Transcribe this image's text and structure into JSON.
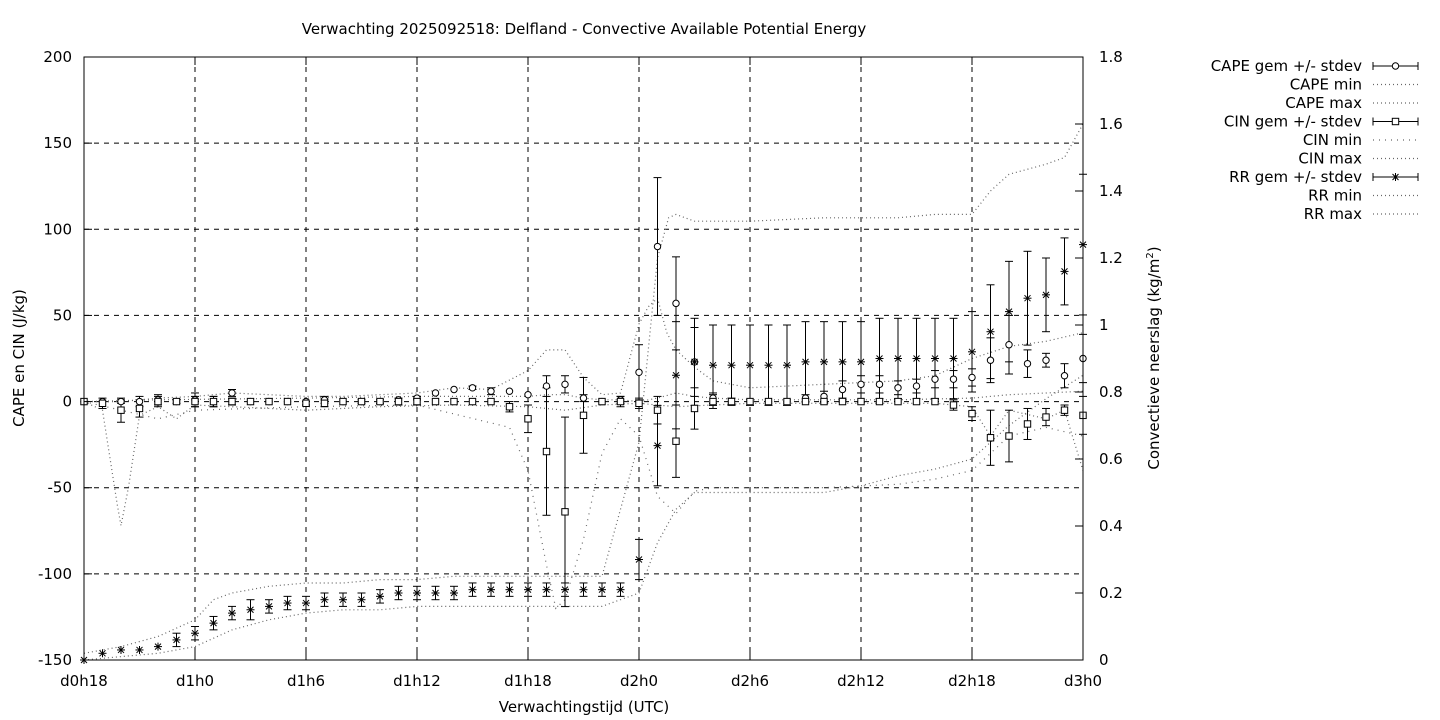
{
  "chart_data": {
    "type": "line",
    "title": "Verwachting 2025092518: Delfland - Convective Available Potential Energy",
    "xlabel": "Verwachtingstijd (UTC)",
    "ylabel": "CAPE en CIN (J/kg)",
    "y2label_main": "Convectieve neerslag (kg/m",
    "y2label_sup": "2",
    "y2label_end": ")",
    "xlim": [
      0,
      54
    ],
    "x_ticks": [
      {
        "x": 0,
        "label": "d0h18"
      },
      {
        "x": 6,
        "label": "d1h0"
      },
      {
        "x": 12,
        "label": "d1h6"
      },
      {
        "x": 18,
        "label": "d1h12"
      },
      {
        "x": 24,
        "label": "d1h18"
      },
      {
        "x": 30,
        "label": "d2h0"
      },
      {
        "x": 36,
        "label": "d2h6"
      },
      {
        "x": 42,
        "label": "d2h12"
      },
      {
        "x": 48,
        "label": "d2h18"
      },
      {
        "x": 54,
        "label": "d3h0"
      }
    ],
    "ylim": [
      -150,
      200
    ],
    "y_ticks": [
      -150,
      -100,
      -50,
      0,
      50,
      100,
      150,
      200
    ],
    "y_tick_labels": [
      "-150",
      "-100",
      "-50",
      "0",
      "50",
      "100",
      "150",
      "200"
    ],
    "y2lim": [
      0,
      1.8
    ],
    "y2_ticks": [
      0,
      0.2,
      0.4,
      0.6,
      0.8,
      1,
      1.2,
      1.4,
      1.6,
      1.8
    ],
    "y2_tick_labels": [
      "0",
      "0.2",
      "0.4",
      "0.6",
      "0.8",
      "1",
      "1.2",
      "1.4",
      "1.6",
      "1.8"
    ],
    "grid": true,
    "legend_position": "outside-right-top",
    "legend": [
      {
        "label": "CAPE gem +/- stdev",
        "style": "errorbar-circle"
      },
      {
        "label": "CAPE min",
        "style": "dotted"
      },
      {
        "label": "CAPE max",
        "style": "dotted"
      },
      {
        "label": "CIN gem +/- stdev",
        "style": "errorbar-square"
      },
      {
        "label": "CIN min",
        "style": "dotted-sparse"
      },
      {
        "label": "CIN max",
        "style": "dotted"
      },
      {
        "label": "RR gem +/- stdev",
        "style": "errorbar-star"
      },
      {
        "label": "RR min",
        "style": "dotted"
      },
      {
        "label": "RR max",
        "style": "dotted"
      }
    ],
    "cape": {
      "x": [
        0,
        1,
        2,
        3,
        4,
        5,
        6,
        7,
        8,
        9,
        10,
        11,
        12,
        13,
        14,
        15,
        16,
        17,
        18,
        19,
        20,
        21,
        22,
        23,
        24,
        25,
        26,
        27,
        28,
        29,
        30,
        31,
        32,
        33,
        34,
        35,
        36,
        37,
        38,
        39,
        40,
        41,
        42,
        43,
        44,
        45,
        46,
        47,
        48,
        49,
        50,
        51,
        52,
        53,
        54
      ],
      "mean": [
        0,
        0,
        0,
        0,
        1,
        0,
        1,
        0,
        5,
        0,
        0,
        0,
        0,
        1,
        0,
        0,
        0,
        1,
        2,
        5,
        7,
        8,
        6,
        6,
        4,
        9,
        10,
        2,
        0,
        1,
        17,
        90,
        57,
        23,
        2,
        0,
        0,
        0,
        0,
        2,
        3,
        7,
        10,
        10,
        8,
        9,
        13,
        13,
        14,
        24,
        33,
        22,
        24,
        15,
        25
      ],
      "sd": [
        0,
        0,
        1,
        3,
        3,
        1,
        4,
        3,
        2,
        0,
        0,
        0,
        0,
        2,
        0,
        0,
        0,
        0,
        1,
        0,
        0,
        1,
        2,
        0,
        0,
        6,
        5,
        2,
        0,
        2,
        16,
        40,
        27,
        20,
        3,
        0,
        0,
        0,
        0,
        2,
        3,
        5,
        5,
        5,
        4,
        4,
        5,
        5,
        5,
        13,
        17,
        8,
        4,
        7,
        14
      ]
    },
    "cin": {
      "x": [
        0,
        1,
        2,
        3,
        4,
        5,
        6,
        7,
        8,
        9,
        10,
        11,
        12,
        13,
        14,
        15,
        16,
        17,
        18,
        19,
        20,
        21,
        22,
        23,
        24,
        25,
        26,
        27,
        28,
        29,
        30,
        31,
        32,
        33,
        34,
        35,
        36,
        37,
        38,
        39,
        40,
        41,
        42,
        43,
        44,
        45,
        46,
        47,
        48,
        49,
        50,
        51,
        52,
        53,
        54
      ],
      "mean": [
        0,
        -1,
        -5,
        -4,
        0,
        0,
        0,
        0,
        0,
        0,
        0,
        0,
        -1,
        -1,
        0,
        0,
        0,
        0,
        0,
        0,
        0,
        0,
        0,
        -3,
        -10,
        -29,
        -64,
        -8,
        0,
        0,
        -1,
        -5,
        -23,
        -4,
        0,
        0,
        0,
        0,
        0,
        0,
        0,
        0,
        0,
        0,
        0,
        0,
        0,
        -2,
        -7,
        -21,
        -20,
        -13,
        -9,
        -5,
        -8
      ],
      "sd": [
        0,
        3,
        7,
        5,
        3,
        1,
        3,
        3,
        2,
        0,
        0,
        0,
        1,
        2,
        0,
        1,
        1,
        2,
        2,
        0,
        0,
        0,
        0,
        3,
        8,
        37,
        55,
        22,
        0,
        3,
        3,
        8,
        21,
        12,
        4,
        2,
        0,
        0,
        0,
        0,
        0,
        0,
        0,
        0,
        0,
        0,
        0,
        3,
        4,
        16,
        15,
        9,
        5,
        3,
        11
      ]
    },
    "rr": {
      "x": [
        0,
        1,
        2,
        3,
        4,
        5,
        6,
        7,
        8,
        9,
        10,
        11,
        12,
        13,
        14,
        15,
        16,
        17,
        18,
        19,
        20,
        21,
        22,
        23,
        24,
        25,
        26,
        27,
        28,
        29,
        30,
        31,
        32,
        33,
        34,
        35,
        36,
        37,
        38,
        39,
        40,
        41,
        42,
        43,
        44,
        45,
        46,
        47,
        48,
        49,
        50,
        51,
        52,
        53,
        54
      ],
      "mean": [
        0,
        0.02,
        0.03,
        0.03,
        0.04,
        0.06,
        0.08,
        0.11,
        0.14,
        0.15,
        0.16,
        0.17,
        0.17,
        0.18,
        0.18,
        0.18,
        0.19,
        0.2,
        0.2,
        0.2,
        0.2,
        0.21,
        0.21,
        0.21,
        0.21,
        0.21,
        0.21,
        0.21,
        0.21,
        0.21,
        0.3,
        0.64,
        0.85,
        0.89,
        0.88,
        0.88,
        0.88,
        0.88,
        0.88,
        0.89,
        0.89,
        0.89,
        0.89,
        0.9,
        0.9,
        0.9,
        0.9,
        0.9,
        0.92,
        0.98,
        1.04,
        1.08,
        1.09,
        1.16,
        1.24
      ],
      "sd": [
        0,
        0,
        0,
        0,
        0,
        0.02,
        0.02,
        0.02,
        0.02,
        0.03,
        0.02,
        0.02,
        0.02,
        0.02,
        0.02,
        0.02,
        0.02,
        0.02,
        0.02,
        0.02,
        0.02,
        0.02,
        0.02,
        0.02,
        0.02,
        0.02,
        0.02,
        0.02,
        0.02,
        0.02,
        0.06,
        0.12,
        0.16,
        0.13,
        0.12,
        0.12,
        0.12,
        0.12,
        0.12,
        0.12,
        0.12,
        0.12,
        0.12,
        0.12,
        0.12,
        0.12,
        0.12,
        0.12,
        0.12,
        0.14,
        0.15,
        0.14,
        0.11,
        0.1,
        0.21
      ]
    },
    "cape_max": {
      "x": [
        0,
        2,
        4,
        6,
        8,
        10,
        12,
        14,
        16,
        18,
        20,
        22,
        24,
        25,
        26,
        27,
        28,
        29,
        30,
        30.5,
        31,
        31.5,
        32,
        33,
        34,
        36,
        40,
        44,
        46,
        48,
        50,
        52,
        54
      ],
      "y": [
        0,
        0,
        2,
        3,
        5,
        4,
        3,
        3,
        4,
        5,
        8,
        7,
        18,
        30,
        30,
        14,
        4,
        5,
        45,
        55,
        60,
        40,
        30,
        20,
        12,
        8,
        10,
        12,
        15,
        25,
        32,
        35,
        40
      ]
    },
    "cape_min": {
      "x": [
        0,
        1,
        1.8,
        2,
        2.4,
        3,
        4,
        5,
        6,
        8,
        12,
        16,
        20,
        24,
        26,
        28,
        30,
        32,
        34,
        36,
        40,
        44,
        46,
        48,
        48.4,
        49,
        50,
        52,
        53,
        54
      ],
      "y": [
        0,
        -5,
        -60,
        -72,
        -50,
        -8,
        -3,
        -10,
        -2,
        -3,
        -5,
        -3,
        -2,
        -3,
        -5,
        -2,
        -1,
        -3,
        -2,
        -1,
        -1,
        -1,
        -1,
        -3,
        -10,
        -20,
        -5,
        -10,
        -5,
        -40
      ]
    },
    "cin_max": {
      "x": [
        0,
        4,
        12,
        18,
        24,
        25,
        26,
        27,
        28,
        29,
        30,
        31,
        32,
        33,
        34,
        36,
        40,
        44,
        48,
        50,
        52,
        54
      ],
      "y": [
        0,
        1,
        2,
        3,
        3,
        4,
        4,
        2,
        1,
        1,
        0,
        2,
        5,
        3,
        2,
        1,
        1,
        1,
        2,
        4,
        5,
        6
      ]
    },
    "cin_min": {
      "x": [
        0,
        2,
        4,
        6,
        12,
        18,
        23,
        24,
        25,
        25.5,
        26,
        27,
        28,
        29,
        30,
        31,
        32,
        33,
        34,
        36,
        40,
        44,
        46,
        48,
        49,
        50,
        52,
        54
      ],
      "y": [
        0,
        -5,
        -10,
        -5,
        -3,
        -2,
        -15,
        -40,
        -95,
        -120,
        -115,
        -80,
        -30,
        -10,
        -20,
        -55,
        -65,
        -52,
        -50,
        -50,
        -50,
        -48,
        -45,
        -40,
        -30,
        -20,
        -15,
        -20
      ]
    },
    "rr_max": {
      "x": [
        0,
        2,
        4,
        6,
        7,
        8,
        10,
        12,
        14,
        16,
        18,
        20,
        22,
        24,
        26,
        28,
        30,
        31,
        31.6,
        32,
        33,
        34,
        36,
        40,
        44,
        46,
        47,
        48,
        49,
        50,
        52,
        53,
        54
      ],
      "y": [
        0.02,
        0.04,
        0.07,
        0.12,
        0.18,
        0.2,
        0.22,
        0.23,
        0.23,
        0.24,
        0.24,
        0.25,
        0.25,
        0.25,
        0.25,
        0.25,
        0.65,
        1.2,
        1.32,
        1.33,
        1.31,
        1.31,
        1.31,
        1.32,
        1.32,
        1.33,
        1.33,
        1.33,
        1.4,
        1.45,
        1.48,
        1.5,
        1.6
      ]
    },
    "rr_min": {
      "x": [
        0,
        2,
        4,
        6,
        8,
        10,
        12,
        14,
        16,
        18,
        20,
        22,
        24,
        26,
        28,
        30,
        31,
        32,
        33,
        34,
        36,
        38,
        40,
        42,
        44,
        46,
        48,
        50,
        52,
        54
      ],
      "y": [
        0,
        0.01,
        0.02,
        0.04,
        0.09,
        0.12,
        0.14,
        0.15,
        0.15,
        0.16,
        0.16,
        0.16,
        0.16,
        0.16,
        0.16,
        0.2,
        0.35,
        0.45,
        0.5,
        0.5,
        0.5,
        0.5,
        0.5,
        0.52,
        0.55,
        0.57,
        0.6,
        0.7,
        0.78,
        0.85
      ]
    }
  }
}
